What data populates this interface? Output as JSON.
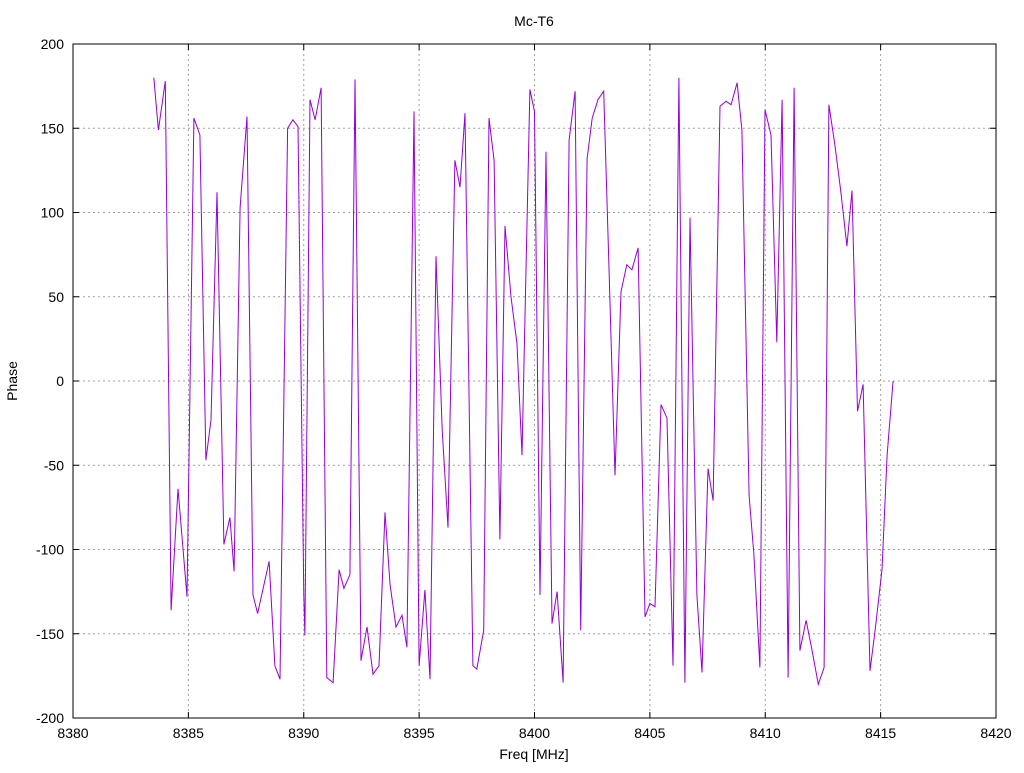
{
  "chart_data": {
    "type": "line",
    "title": "Mc-T6",
    "xlabel": "Freq [MHz]",
    "ylabel": "Phase",
    "xlim": [
      8380,
      8420
    ],
    "ylim": [
      -200,
      200
    ],
    "xticks": [
      8380,
      8385,
      8390,
      8395,
      8400,
      8405,
      8410,
      8415,
      8420
    ],
    "yticks": [
      -200,
      -150,
      -100,
      -50,
      0,
      50,
      100,
      150,
      200
    ],
    "grid": true,
    "series": [
      {
        "name": "Phase",
        "color": "#9400d3",
        "x": [
          8383.5,
          8383.7,
          8384.0,
          8384.25,
          8384.55,
          8384.94,
          8385.24,
          8385.5,
          8385.76,
          8385.98,
          8386.24,
          8386.54,
          8386.8,
          8386.98,
          8387.24,
          8387.54,
          8387.8,
          8388.0,
          8388.5,
          8388.75,
          8388.97,
          8389.3,
          8389.53,
          8389.75,
          8390.0,
          8390.05,
          8390.27,
          8390.49,
          8390.75,
          8391.0,
          8391.27,
          8391.53,
          8391.74,
          8392.0,
          8392.22,
          8392.48,
          8392.74,
          8393.0,
          8393.26,
          8393.52,
          8393.74,
          8394.0,
          8394.26,
          8394.47,
          8394.78,
          8395.0,
          8395.25,
          8395.47,
          8395.73,
          8396.0,
          8396.25,
          8396.55,
          8396.77,
          8396.99,
          8397.33,
          8397.5,
          8397.8,
          8398.03,
          8398.25,
          8398.5,
          8398.72,
          8398.98,
          8399.24,
          8399.46,
          8399.8,
          8400.0,
          8400.24,
          8400.5,
          8400.76,
          8400.98,
          8401.24,
          8401.5,
          8401.76,
          8402.0,
          8402.28,
          8402.5,
          8402.75,
          8403.0,
          8403.23,
          8403.49,
          8403.75,
          8404.0,
          8404.22,
          8404.49,
          8404.79,
          8405.0,
          8405.22,
          8405.48,
          8405.74,
          8406.0,
          8406.26,
          8406.52,
          8406.74,
          8407.04,
          8407.26,
          8407.52,
          8407.74,
          8408.04,
          8408.3,
          8408.52,
          8408.78,
          8408.99,
          8409.3,
          8409.51,
          8409.77,
          8409.99,
          8410.25,
          8410.5,
          8410.73,
          8410.99,
          8411.25,
          8411.5,
          8411.77,
          8412.03,
          8412.3,
          8412.55,
          8412.76,
          8413.02,
          8413.28,
          8413.54,
          8413.76,
          8414.0,
          8414.24,
          8414.54,
          8414.76,
          8415.06,
          8415.28,
          8415.54
        ],
        "y": [
          180,
          149,
          178,
          -136,
          -64,
          -128,
          156,
          146,
          -47,
          -23,
          112,
          -97,
          -81,
          -113,
          103,
          157,
          -127,
          -138,
          -107,
          -169,
          -177,
          150,
          155,
          151,
          -127,
          -151,
          167,
          155,
          174,
          -176,
          -179,
          -112,
          -123,
          -115,
          179,
          -166,
          -146,
          -174,
          -169,
          -78,
          -121,
          -146,
          -139,
          -158,
          160,
          -169,
          -124,
          -177,
          74,
          -29,
          -87,
          131,
          115,
          159,
          -169,
          -171,
          -148,
          156,
          131,
          -94,
          92,
          50,
          22,
          -44,
          173,
          160,
          -127,
          136,
          -144,
          -125,
          -179,
          143,
          172,
          -148,
          132,
          156,
          167,
          172,
          67,
          -56,
          53,
          69,
          66,
          79,
          -140,
          -132,
          -134,
          -14,
          -22,
          -169,
          180,
          -179,
          97,
          -127,
          -173,
          -52,
          -71,
          163,
          166,
          164,
          177,
          149,
          -68,
          -103,
          -170,
          161,
          146,
          23,
          167,
          -176,
          174,
          -160,
          -142,
          -160,
          -180,
          -170,
          164,
          140,
          112,
          80,
          113,
          -18,
          -2,
          -172,
          -148,
          -112,
          -44,
          0
        ]
      }
    ]
  }
}
